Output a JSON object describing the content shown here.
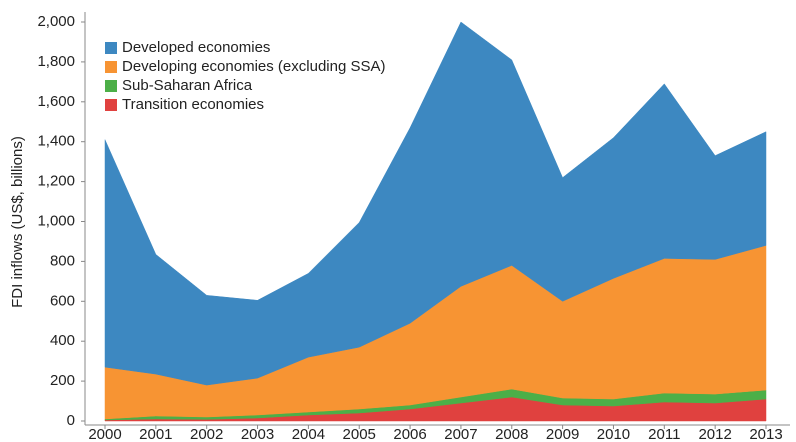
{
  "chart_data": {
    "type": "stacked_area",
    "y_label": "FDI inflows (US$, billions)",
    "categories": [
      "2000",
      "2001",
      "2002",
      "2003",
      "2004",
      "2005",
      "2006",
      "2007",
      "2008",
      "2009",
      "2010",
      "2011",
      "2012",
      "2013"
    ],
    "series": [
      {
        "name": "Developed economies",
        "color": "#3d88c1",
        "values": [
          1140,
          600,
          450,
          390,
          420,
          625,
          980,
          1325,
          1030,
          620,
          705,
          875,
          520,
          570
        ]
      },
      {
        "name": "Developing economies (excluding SSA)",
        "color": "#f79433",
        "values": [
          260,
          210,
          160,
          185,
          275,
          310,
          410,
          555,
          620,
          485,
          605,
          675,
          675,
          725
        ]
      },
      {
        "name": "Sub-Saharan Africa",
        "color": "#4caf48",
        "values": [
          5,
          15,
          12,
          15,
          15,
          20,
          20,
          30,
          40,
          35,
          35,
          45,
          45,
          45
        ]
      },
      {
        "name": "Transition economies",
        "color": "#e0413f",
        "values": [
          5,
          10,
          8,
          15,
          30,
          40,
          60,
          90,
          120,
          80,
          75,
          95,
          90,
          110
        ]
      }
    ],
    "ylim": [
      0,
      2000
    ],
    "yticks": [
      0,
      200,
      400,
      600,
      800,
      {
        "value": 1000,
        "label": "1,000"
      },
      {
        "value": 1200,
        "label": "1,200"
      },
      {
        "value": 1400,
        "label": "1,400"
      },
      {
        "value": 1600,
        "label": "1,600"
      },
      {
        "value": 1800,
        "label": "1,800"
      },
      {
        "value": 2000,
        "label": "2,000"
      }
    ],
    "legend": "top-left"
  }
}
